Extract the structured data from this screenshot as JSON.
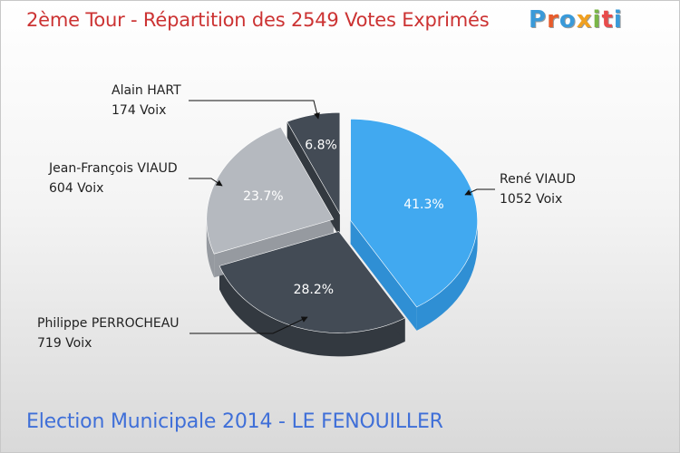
{
  "header": {
    "title": "2ème Tour - Répartition des 2549 Votes Exprimés",
    "logo": [
      "P",
      "r",
      "o",
      "x",
      "i",
      "t",
      "i"
    ]
  },
  "footer": {
    "subtitle": "Election Municipale 2014 - LE FENOUILLER"
  },
  "colors": {
    "title": "#cc3333",
    "subtitle": "#3f6fd8",
    "logo": [
      "#3a9ad9",
      "#e85c2b",
      "#3a9ad9",
      "#f0a020",
      "#7ab648",
      "#e84c4c",
      "#3a9ad9"
    ]
  },
  "chart_data": {
    "type": "pie",
    "title": "2ème Tour - Répartition des 2549 Votes Exprimés",
    "total_votes": 2549,
    "slices": [
      {
        "name": "René VIAUD",
        "votes": 1052,
        "votes_label": "1052 Voix",
        "percent": 41.3,
        "percent_label": "41.3%",
        "color": "#41a9f0",
        "side_color": "#2f8fd4"
      },
      {
        "name": "Philippe PERROCHEAU",
        "votes": 719,
        "votes_label": "719 Voix",
        "percent": 28.2,
        "percent_label": "28.2%",
        "color": "#434b55",
        "side_color": "#333940"
      },
      {
        "name": "Jean-François VIAUD",
        "votes": 604,
        "votes_label": "604 Voix",
        "percent": 23.7,
        "percent_label": "23.7%",
        "color": "#b5b9bf",
        "side_color": "#969aa0"
      },
      {
        "name": "Alain HART",
        "votes": 174,
        "votes_label": "174 Voix",
        "percent": 6.8,
        "percent_label": "6.8%",
        "color": "#434b55",
        "side_color": "#333940"
      }
    ]
  }
}
